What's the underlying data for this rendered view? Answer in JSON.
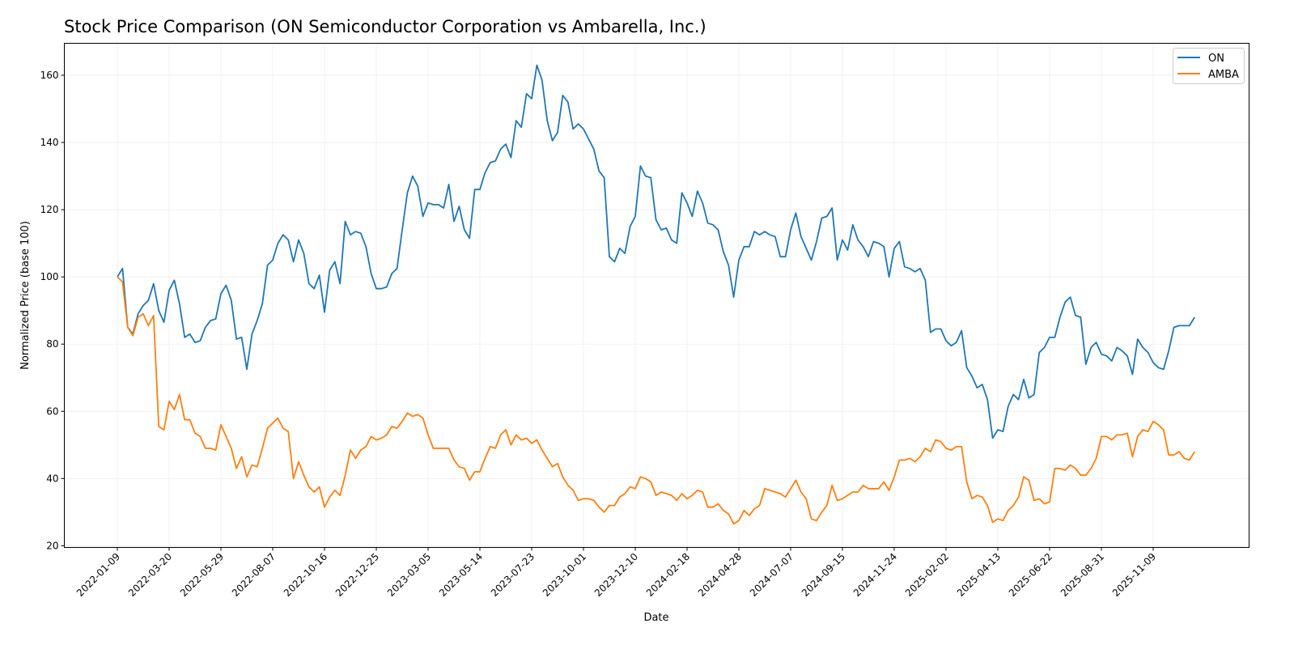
{
  "chart_data": {
    "type": "line",
    "title": "Stock Price Comparison (ON Semiconductor Corporation vs Ambarella, Inc.)",
    "xlabel": "Date",
    "ylabel": "Normalized Price (base 100)",
    "ylim": [
      19.5,
      169.5
    ],
    "yticks": [
      20,
      40,
      60,
      80,
      100,
      120,
      140,
      160
    ],
    "xticks": [
      "2022-01-09",
      "2022-03-20",
      "2022-05-29",
      "2022-08-07",
      "2022-10-16",
      "2022-12-25",
      "2023-03-05",
      "2023-05-14",
      "2023-07-23",
      "2023-10-01",
      "2023-12-10",
      "2024-02-18",
      "2024-04-28",
      "2024-07-07",
      "2024-09-15",
      "2024-11-24",
      "2025-02-02",
      "2025-04-13",
      "2025-06-22",
      "2025-08-31",
      "2025-11-09"
    ],
    "x_start": "2022-01-09",
    "x_end": "2026-01-04",
    "grid": true,
    "legend_position": "top-right",
    "series": [
      {
        "name": "ON",
        "color": "#1f77b4",
        "values": [
          100,
          102.5,
          85,
          83,
          89,
          91.5,
          93,
          98,
          90,
          86.5,
          96,
          99,
          92,
          82,
          83,
          80.5,
          81,
          85,
          87,
          87.5,
          95,
          97.5,
          93,
          81.5,
          82,
          72.5,
          83,
          87,
          92,
          103.5,
          105,
          110,
          112.5,
          111,
          104.5,
          111,
          107,
          98,
          96.5,
          100.5,
          89.5,
          102,
          104.5,
          98,
          116.5,
          112.5,
          113.5,
          113,
          109,
          101,
          96.5,
          96.5,
          97,
          101,
          102.5,
          114,
          125,
          130,
          127,
          118,
          122,
          121.5,
          121.5,
          120.5,
          127.5,
          116.5,
          121,
          114,
          111.5,
          126,
          126,
          131,
          134,
          134.5,
          138,
          139.5,
          135.5,
          146.5,
          144.5,
          154.5,
          153,
          163,
          158.5,
          146.5,
          140.5,
          143,
          154,
          152,
          144,
          145.5,
          144,
          141,
          138,
          131.5,
          129.5,
          106,
          104.5,
          108.5,
          107,
          115,
          118,
          133,
          130,
          129.5,
          117,
          114,
          114.5,
          111,
          110,
          125,
          122,
          118,
          125.5,
          122,
          116,
          115.5,
          114,
          107.5,
          103.5,
          94,
          105,
          109,
          109,
          113.5,
          112.5,
          113.5,
          112.5,
          112,
          106,
          106,
          114,
          119,
          112,
          108.5,
          105,
          110.5,
          117.5,
          118,
          120.5,
          105,
          111,
          108,
          115.5,
          111,
          109,
          106,
          110.5,
          110,
          109,
          100,
          108.5,
          110.5,
          103,
          102.5,
          101.5,
          102.5,
          99,
          83.5,
          84.5,
          84.5,
          81,
          79.5,
          80.5,
          84,
          73,
          70.5,
          67,
          68,
          63.5,
          52,
          54.5,
          54,
          61.5,
          65,
          63.5,
          69.5,
          64,
          65,
          77.5,
          79,
          82,
          82,
          88,
          92.5,
          94,
          88.5,
          88,
          74,
          79,
          80.5,
          77,
          76.5,
          75,
          79,
          78,
          76.5,
          71,
          81.5,
          79,
          77.5,
          74.5,
          73,
          72.5,
          78,
          85,
          85.5,
          85.5,
          85.5,
          88
        ]
      },
      {
        "name": "AMBA",
        "color": "#ff7f0e",
        "values": [
          100,
          98.5,
          85,
          82.5,
          88,
          89,
          85.5,
          88.5,
          55.5,
          54.5,
          63,
          60.5,
          65,
          57.5,
          57.5,
          53.5,
          52.5,
          49,
          49,
          48.5,
          56,
          52.5,
          49,
          43,
          46.5,
          40.5,
          44,
          43.5,
          49,
          55,
          56.5,
          58,
          55,
          54,
          40,
          45,
          41,
          37.5,
          36,
          37.5,
          31.5,
          34.5,
          36.5,
          35,
          41,
          48.5,
          46,
          48.5,
          49.5,
          52.5,
          51.5,
          52,
          53,
          55.5,
          55,
          57,
          59.5,
          58.5,
          59,
          58,
          53,
          49,
          49,
          49,
          49,
          45.5,
          43.5,
          43,
          39.5,
          42,
          42,
          46,
          49.5,
          49,
          53,
          54.5,
          50,
          53,
          51.5,
          52,
          50.5,
          51.5,
          48.5,
          46,
          43.5,
          44.5,
          40.5,
          38,
          36.5,
          33.5,
          34,
          34,
          33.5,
          31.5,
          30,
          32,
          32,
          34.5,
          35.5,
          37.5,
          37,
          40.5,
          40,
          39,
          35,
          36,
          35.5,
          35,
          33.5,
          35.5,
          34,
          35,
          36.5,
          36,
          31.5,
          31.5,
          32.5,
          30.5,
          29.5,
          26.5,
          27.5,
          30.5,
          29,
          31,
          32,
          37,
          36.5,
          36,
          35.5,
          34.5,
          37,
          39.5,
          36,
          34,
          28,
          27.5,
          30,
          32,
          38,
          33.5,
          34,
          35,
          36,
          36,
          38,
          37,
          37,
          37,
          39,
          36.5,
          40.5,
          45.5,
          45.5,
          46,
          45,
          46.5,
          49,
          48,
          51.5,
          51,
          49,
          48.5,
          49.5,
          49.5,
          39,
          34,
          35,
          34.5,
          32,
          27,
          28,
          27.5,
          30.5,
          32,
          34.5,
          40.5,
          39.5,
          33.5,
          34,
          32.5,
          33,
          43,
          43,
          42.5,
          44,
          43,
          41,
          41,
          43,
          46,
          52.5,
          52.5,
          51.5,
          53,
          53,
          53.5,
          46.5,
          52.5,
          54.5,
          54,
          57,
          56,
          54.5,
          47,
          47,
          48,
          46,
          45.5,
          48
        ]
      }
    ]
  }
}
